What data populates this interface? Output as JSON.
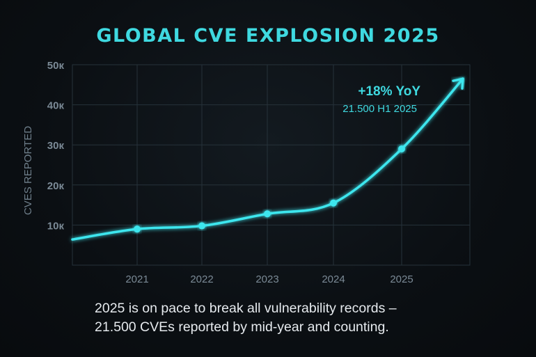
{
  "chart_data": {
    "type": "line",
    "title": "GLOBAL CVE EXPLOSION 2025",
    "ylabel": "CVES REPORTED",
    "xlabel": "",
    "categories": [
      "2021",
      "2022",
      "2023",
      "2024",
      "2025"
    ],
    "series": [
      {
        "values": [
          9000,
          9800,
          12800,
          15500,
          29000
        ]
      }
    ],
    "line_start_value": 6400,
    "arrow_end_value": 46500,
    "ylim": [
      0,
      50000
    ],
    "yticks": [
      10000,
      20000,
      30000,
      40000,
      50000
    ],
    "ytick_labels": [
      "10к",
      "20к",
      "30к",
      "40к",
      "50к"
    ],
    "grid": true,
    "annotation": {
      "headline": "+18% YoY",
      "detail": "21.500 H1 2025"
    },
    "colors": {
      "line": "#3ee6ee",
      "title": "#3fd9e0",
      "axis_text": "#7b8a96",
      "grid": "#26323a"
    }
  },
  "caption": {
    "line1": "2025 is on pace to break all vulnerability records –",
    "line2": "21.500 CVEs reported by mid-year and counting."
  }
}
